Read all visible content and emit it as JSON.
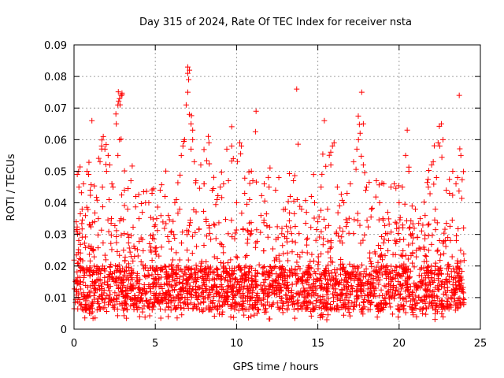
{
  "chart_data": {
    "type": "scatter",
    "title": "Day 315 of 2024, Rate Of TEC Index for receiver nsta",
    "xlabel": "GPS time / hours",
    "ylabel": "ROTI / TECUs",
    "xlim": [
      0,
      25
    ],
    "ylim": [
      0,
      0.09
    ],
    "xticks": [
      0,
      5,
      10,
      15,
      20,
      25
    ],
    "xtick_labels": [
      "0",
      "5",
      "10",
      "15",
      "20",
      "25"
    ],
    "yticks": [
      0,
      0.01,
      0.02,
      0.03,
      0.04,
      0.05,
      0.06,
      0.07,
      0.08,
      0.09
    ],
    "ytick_labels": [
      "0",
      "0.01",
      "0.02",
      "0.03",
      "0.04",
      "0.05",
      "0.06",
      "0.07",
      "0.08",
      "0.09"
    ],
    "grid": true,
    "marker": "+",
    "color": "#ff0000",
    "series": [
      {
        "name": "ROTI",
        "points": [
          [
            0.2,
            0.049
          ],
          [
            0.3,
            0.045
          ],
          [
            0.5,
            0.038
          ],
          [
            0.8,
            0.05
          ],
          [
            0.9,
            0.049
          ],
          [
            1.0,
            0.044
          ],
          [
            1.1,
            0.066
          ],
          [
            1.5,
            0.035
          ],
          [
            1.6,
            0.053
          ],
          [
            1.7,
            0.058
          ],
          [
            1.8,
            0.061
          ],
          [
            1.9,
            0.057
          ],
          [
            2.0,
            0.05
          ],
          [
            2.1,
            0.055
          ],
          [
            2.2,
            0.052
          ],
          [
            2.4,
            0.045
          ],
          [
            2.6,
            0.065
          ],
          [
            2.7,
            0.071
          ],
          [
            2.8,
            0.073
          ],
          [
            2.9,
            0.074
          ],
          [
            2.8,
            0.06
          ],
          [
            2.7,
            0.055
          ],
          [
            3.1,
            0.044
          ],
          [
            3.3,
            0.038
          ],
          [
            3.5,
            0.047
          ],
          [
            3.8,
            0.042
          ],
          [
            4.0,
            0.035
          ],
          [
            4.2,
            0.037
          ],
          [
            4.4,
            0.04
          ],
          [
            4.6,
            0.04
          ],
          [
            4.8,
            0.043
          ],
          [
            5.0,
            0.033
          ],
          [
            5.3,
            0.044
          ],
          [
            5.6,
            0.042
          ],
          [
            5.8,
            0.036
          ],
          [
            6.0,
            0.031
          ],
          [
            6.2,
            0.04
          ],
          [
            6.3,
            0.041
          ],
          [
            6.5,
            0.038
          ],
          [
            6.6,
            0.055
          ],
          [
            6.7,
            0.058
          ],
          [
            6.8,
            0.06
          ],
          [
            6.9,
            0.071
          ],
          [
            7.0,
            0.083
          ],
          [
            7.0,
            0.081
          ],
          [
            7.05,
            0.079
          ],
          [
            7.1,
            0.082
          ],
          [
            7.0,
            0.075
          ],
          [
            7.1,
            0.068
          ],
          [
            7.2,
            0.065
          ],
          [
            7.3,
            0.063
          ],
          [
            7.3,
            0.06
          ],
          [
            7.2,
            0.057
          ],
          [
            7.4,
            0.053
          ],
          [
            7.5,
            0.047
          ],
          [
            7.8,
            0.052
          ],
          [
            8.0,
            0.046
          ],
          [
            8.3,
            0.059
          ],
          [
            8.5,
            0.044
          ],
          [
            8.8,
            0.041
          ],
          [
            9.0,
            0.045
          ],
          [
            9.2,
            0.046
          ],
          [
            9.4,
            0.057
          ],
          [
            9.5,
            0.047
          ],
          [
            9.7,
            0.058
          ],
          [
            9.8,
            0.054
          ],
          [
            10.0,
            0.04
          ],
          [
            10.2,
            0.059
          ],
          [
            10.3,
            0.058
          ],
          [
            10.5,
            0.043
          ],
          [
            10.8,
            0.041
          ],
          [
            11.0,
            0.047
          ],
          [
            11.2,
            0.069
          ],
          [
            11.5,
            0.036
          ],
          [
            11.7,
            0.046
          ],
          [
            12.0,
            0.045
          ],
          [
            12.4,
            0.044
          ],
          [
            12.6,
            0.048
          ],
          [
            13.0,
            0.038
          ],
          [
            13.3,
            0.042
          ],
          [
            13.5,
            0.047
          ],
          [
            13.7,
            0.076
          ],
          [
            14.0,
            0.038
          ],
          [
            14.3,
            0.037
          ],
          [
            14.6,
            0.042
          ],
          [
            14.8,
            0.04
          ],
          [
            15.0,
            0.034
          ],
          [
            15.2,
            0.045
          ],
          [
            15.4,
            0.066
          ],
          [
            15.6,
            0.038
          ],
          [
            15.8,
            0.052
          ],
          [
            15.9,
            0.058
          ],
          [
            16.0,
            0.059
          ],
          [
            16.2,
            0.045
          ],
          [
            16.6,
            0.04
          ],
          [
            16.8,
            0.043
          ],
          [
            17.0,
            0.046
          ],
          [
            17.2,
            0.053
          ],
          [
            17.4,
            0.057
          ],
          [
            17.5,
            0.06
          ],
          [
            17.6,
            0.062
          ],
          [
            17.7,
            0.075
          ],
          [
            17.8,
            0.065
          ],
          [
            17.8,
            0.052
          ],
          [
            18.0,
            0.045
          ],
          [
            18.3,
            0.038
          ],
          [
            18.6,
            0.047
          ],
          [
            18.8,
            0.04
          ],
          [
            19.0,
            0.035
          ],
          [
            19.3,
            0.037
          ],
          [
            19.5,
            0.045
          ],
          [
            19.7,
            0.046
          ],
          [
            20.0,
            0.04
          ],
          [
            20.2,
            0.045
          ],
          [
            20.4,
            0.055
          ],
          [
            20.5,
            0.063
          ],
          [
            20.6,
            0.05
          ],
          [
            20.8,
            0.039
          ],
          [
            21.0,
            0.038
          ],
          [
            21.3,
            0.035
          ],
          [
            21.6,
            0.036
          ],
          [
            21.8,
            0.045
          ],
          [
            22.0,
            0.052
          ],
          [
            22.1,
            0.053
          ],
          [
            22.3,
            0.048
          ],
          [
            22.4,
            0.059
          ],
          [
            22.5,
            0.058
          ],
          [
            22.6,
            0.065
          ],
          [
            22.7,
            0.06
          ],
          [
            22.9,
            0.044
          ],
          [
            23.1,
            0.043
          ],
          [
            23.3,
            0.05
          ],
          [
            23.5,
            0.046
          ],
          [
            23.6,
            0.048
          ],
          [
            23.7,
            0.074
          ],
          [
            23.8,
            0.055
          ]
        ]
      }
    ],
    "dense_band": {
      "x_range": [
        0,
        24
      ],
      "y_floor": 0.003,
      "y_typical": [
        0.006,
        0.02
      ],
      "note": "dense scatter of ROTI values concentrated near 0.01 TECU/s throughout the day"
    }
  }
}
